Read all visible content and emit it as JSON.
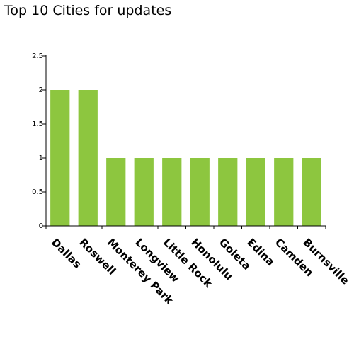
{
  "chart_data": {
    "type": "bar",
    "title": "Top 10 Cities for updates",
    "categories": [
      "Dallas",
      "Roswell",
      "Monterey Park",
      "Longview",
      "Little Rock",
      "Honolulu",
      "Goleta",
      "Edina",
      "Camden",
      "Burnsville"
    ],
    "values": [
      2,
      2,
      1,
      1,
      1,
      1,
      1,
      1,
      1,
      1
    ],
    "ylim": [
      0,
      2.5
    ],
    "yticks": [
      "0",
      "0.5",
      "1",
      "1.5",
      "2",
      "2.5"
    ],
    "xlabel": "",
    "ylabel": "",
    "grid": false,
    "bar_color": "#8dc63f"
  }
}
